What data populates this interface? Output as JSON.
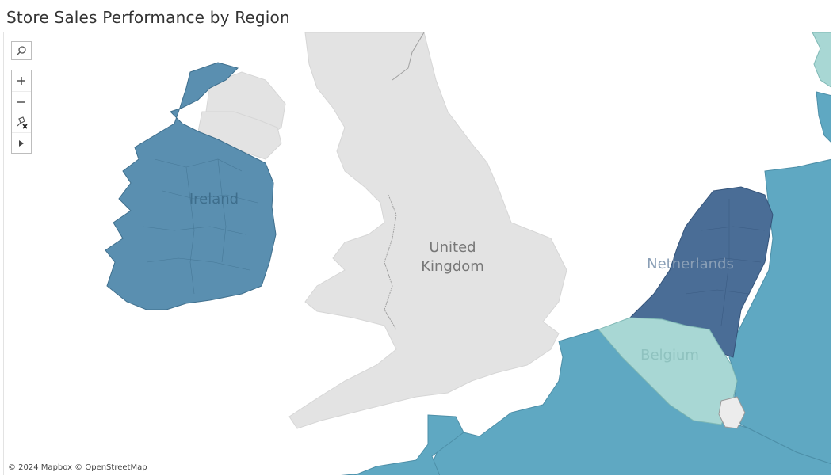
{
  "title": "Store Sales Performance by Region",
  "map": {
    "labels": {
      "ireland": "Ireland",
      "united_kingdom_line1": "United",
      "united_kingdom_line2": "Kingdom",
      "netherlands": "Netherlands",
      "belgium": "Belgium"
    },
    "attribution": "© 2024 Mapbox © OpenStreetMap",
    "colors": {
      "no_data": "#e3e3e3",
      "ireland": "#5a8fb0",
      "netherlands": "#4a6d96",
      "belgium": "#a8d7d4",
      "france_germany": "#5fa8c2",
      "luxembourg": "#ececec",
      "water": "#ffffff"
    }
  },
  "controls": {
    "search_icon": "search-icon",
    "zoom_in_icon": "plus-icon",
    "zoom_out_icon": "minus-icon",
    "reset_icon": "pin-reset-icon",
    "expand_icon": "play-arrow-icon"
  }
}
